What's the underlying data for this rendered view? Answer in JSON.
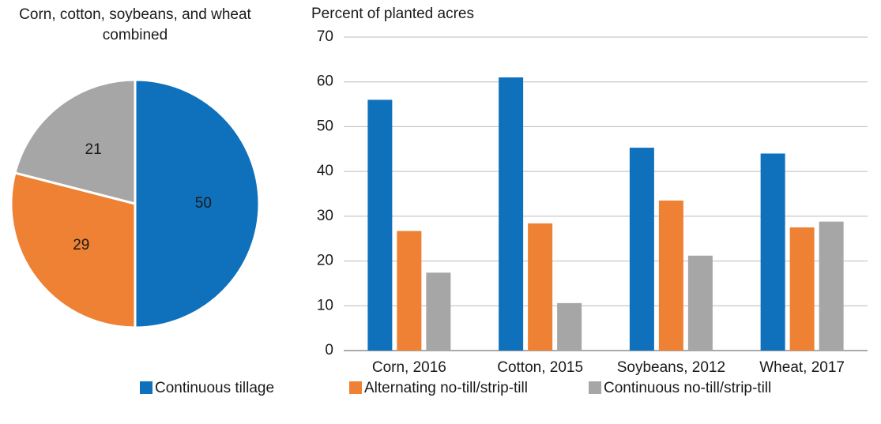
{
  "chart_data": [
    {
      "type": "pie",
      "title": "Corn, cotton, soybeans, and wheat combined",
      "values": [
        50,
        29,
        21
      ],
      "colors": [
        "#0f71bc",
        "#ee8133",
        "#a6a6a6"
      ]
    },
    {
      "type": "bar",
      "ylabel": "Percent of planted acres",
      "categories": [
        "Corn, 2016",
        "Cotton, 2015",
        "Soybeans, 2012",
        "Wheat, 2017"
      ],
      "series": [
        {
          "name": "Continuous tillage",
          "color": "#0f71bc",
          "values": [
            56,
            61,
            45.3,
            44
          ]
        },
        {
          "name": "Alternating no-till/strip-till",
          "color": "#ee8133",
          "values": [
            26.7,
            28.4,
            33.5,
            27.5
          ]
        },
        {
          "name": "Continuous no-till/strip-till",
          "color": "#a6a6a6",
          "values": [
            17.4,
            10.6,
            21.2,
            28.8
          ]
        }
      ],
      "ylim": [
        0,
        70
      ],
      "yticks": [
        0,
        10,
        20,
        30,
        40,
        50,
        60,
        70
      ],
      "grid": true,
      "legend": "bottom"
    }
  ]
}
